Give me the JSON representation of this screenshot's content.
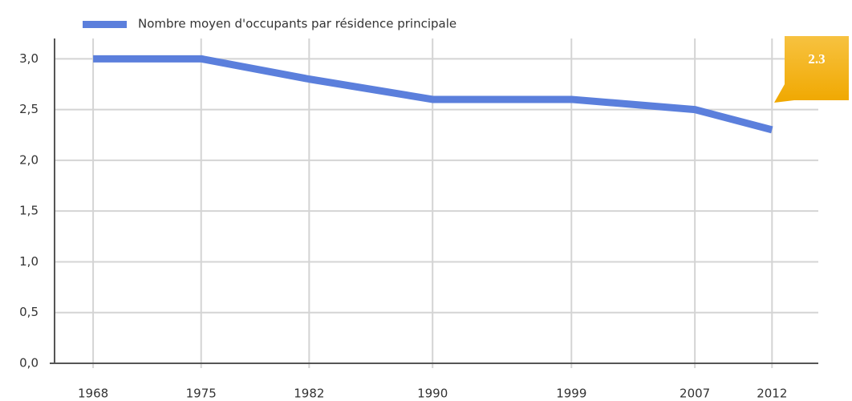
{
  "chart_data": {
    "type": "line",
    "x": [
      1968,
      1975,
      1982,
      1990,
      1999,
      2007,
      2012
    ],
    "series": [
      {
        "name": "Nombre moyen d'occupants par résidence principale",
        "color": "#5b7fdc",
        "values": [
          3.0,
          3.0,
          2.8,
          2.6,
          2.6,
          2.5,
          2.3
        ]
      }
    ],
    "xlim": [
      1965.5,
      2015
    ],
    "xticks": [
      1968,
      1975,
      1982,
      1990,
      1999,
      2007,
      2012
    ],
    "ylim": [
      0,
      3.2
    ],
    "yticks": [
      {
        "value": 0,
        "label": "0,0"
      },
      {
        "value": 0.5,
        "label": "0,5"
      },
      {
        "value": 1,
        "label": "1,0"
      },
      {
        "value": 1.5,
        "label": "1,5"
      },
      {
        "value": 2,
        "label": "2,0"
      },
      {
        "value": 2.5,
        "label": "2,5"
      },
      {
        "value": 3,
        "label": "3,0"
      }
    ],
    "grid": true,
    "legend": "top",
    "annotation": "2.3"
  }
}
